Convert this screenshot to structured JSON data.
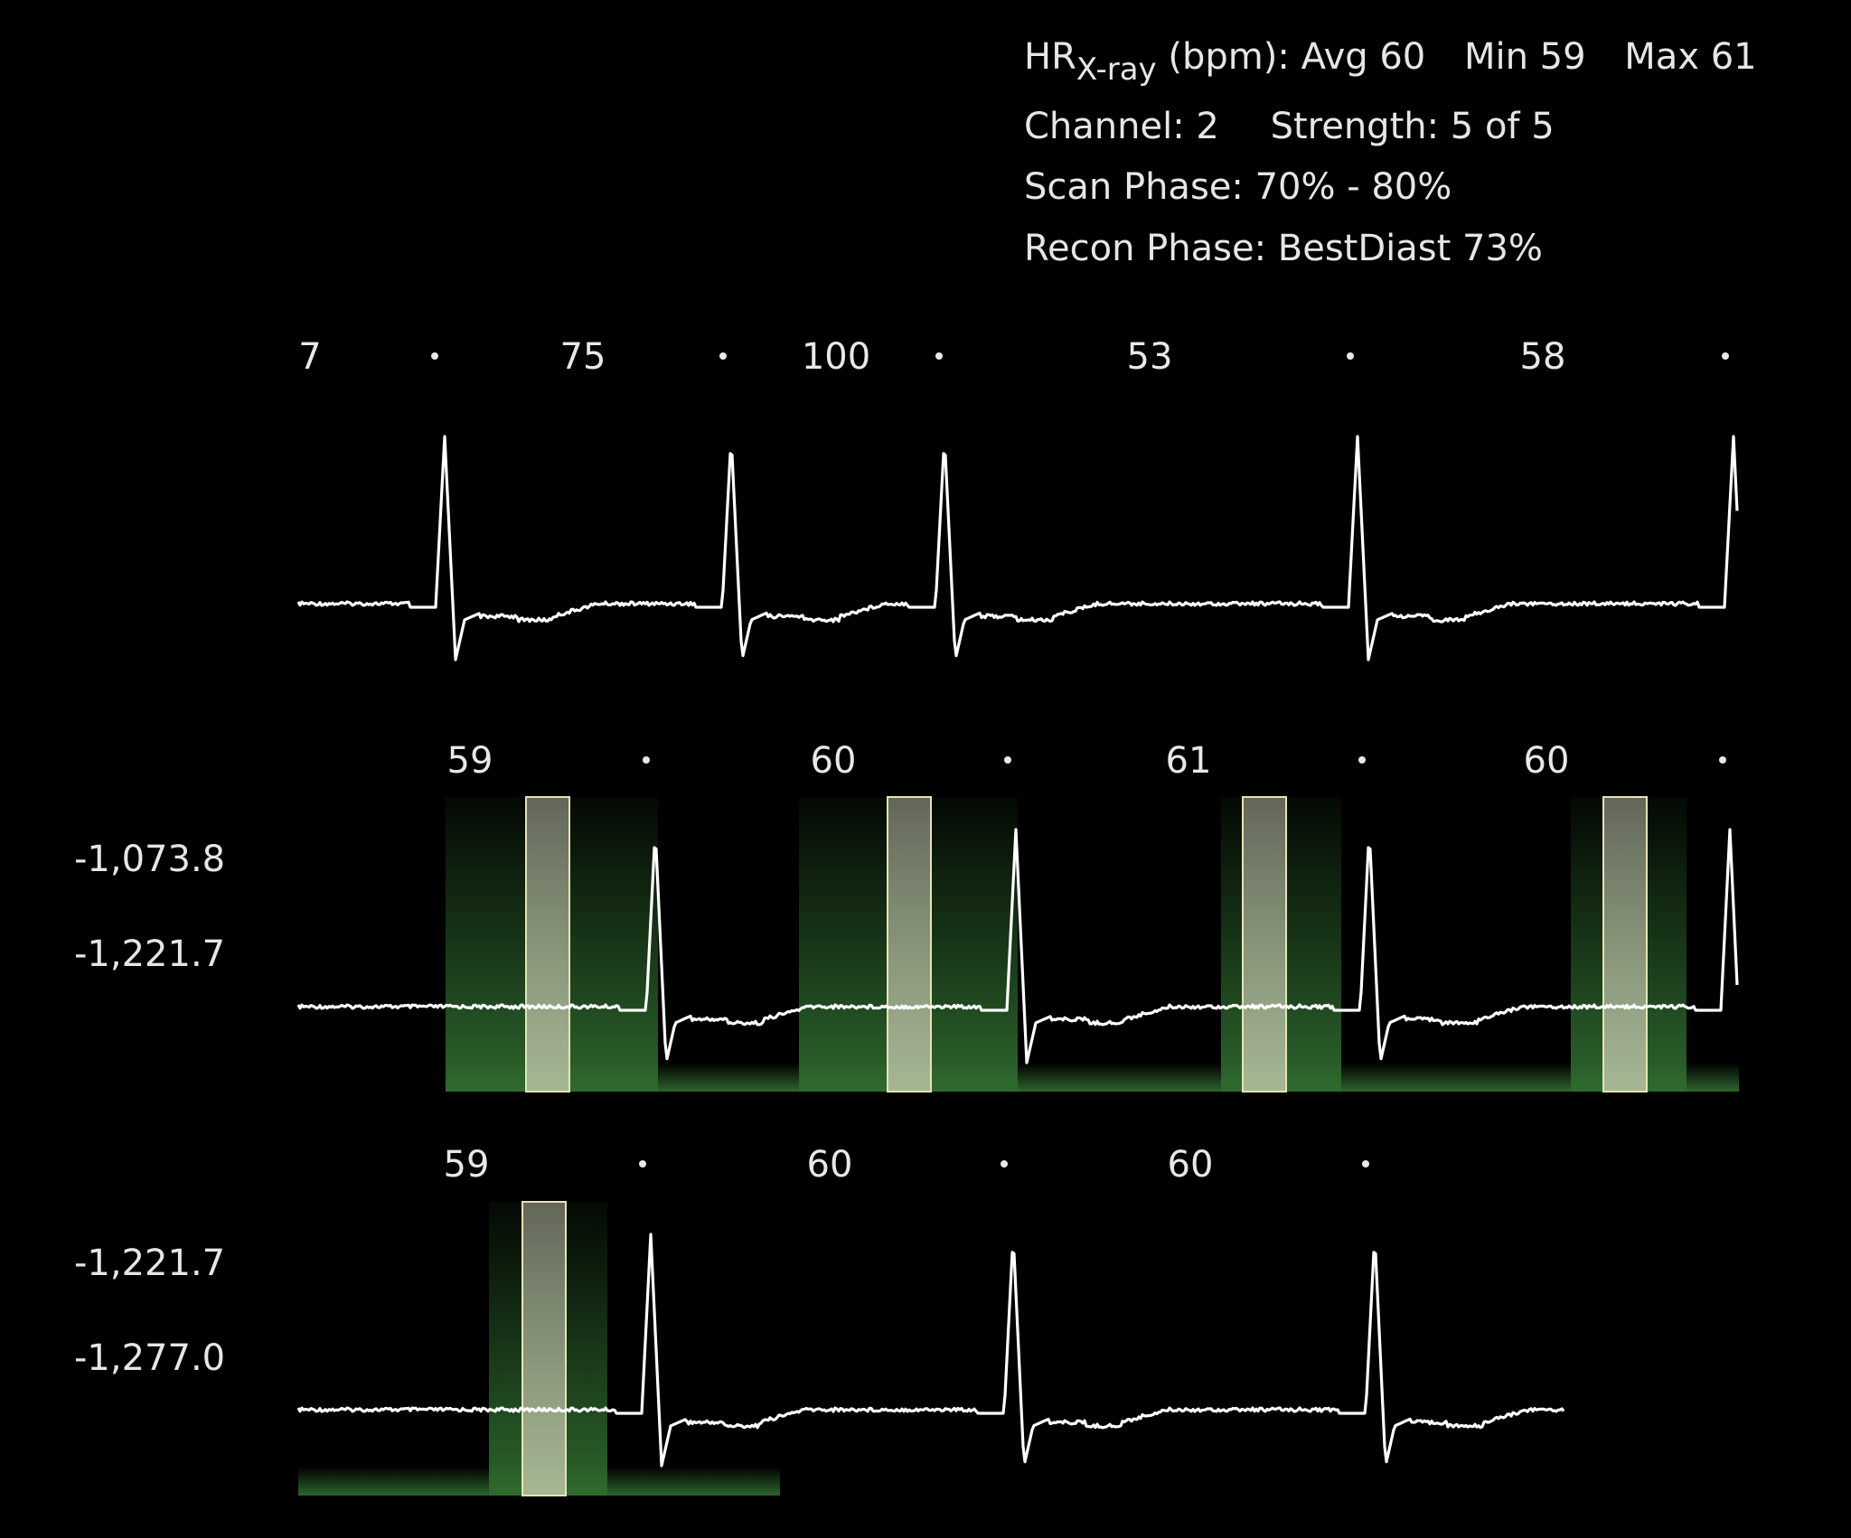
{
  "header": {
    "hr_prefix": "HR",
    "hr_subscript": "X-ray",
    "hr_unit": "(bpm):",
    "hr_avg": "Avg 60",
    "hr_min": "Min 59",
    "hr_max": "Max 61",
    "channel": "Channel: 2",
    "strength": "Strength: 5 of 5",
    "scan_phase": "Scan Phase: 70% - 80%",
    "recon_phase": "Recon Phase: BestDiast 73%"
  },
  "colors": {
    "background": "#000000",
    "waveform": "#ffffff",
    "scan_window": "#2f6a2f",
    "recon_window": "#c8c8a8"
  },
  "strips": [
    {
      "name": "strip-1",
      "rr_labels": [
        "7",
        "75",
        "100",
        "53",
        "58"
      ],
      "y_labels": []
    },
    {
      "name": "strip-2",
      "rr_labels": [
        "59",
        "60",
        "61",
        "60"
      ],
      "y_labels": [
        "-1,073.8",
        "-1,221.7"
      ]
    },
    {
      "name": "strip-3",
      "rr_labels": [
        "59",
        "60",
        "60"
      ],
      "y_labels": [
        "-1,221.7",
        "-1,277.0"
      ]
    }
  ]
}
